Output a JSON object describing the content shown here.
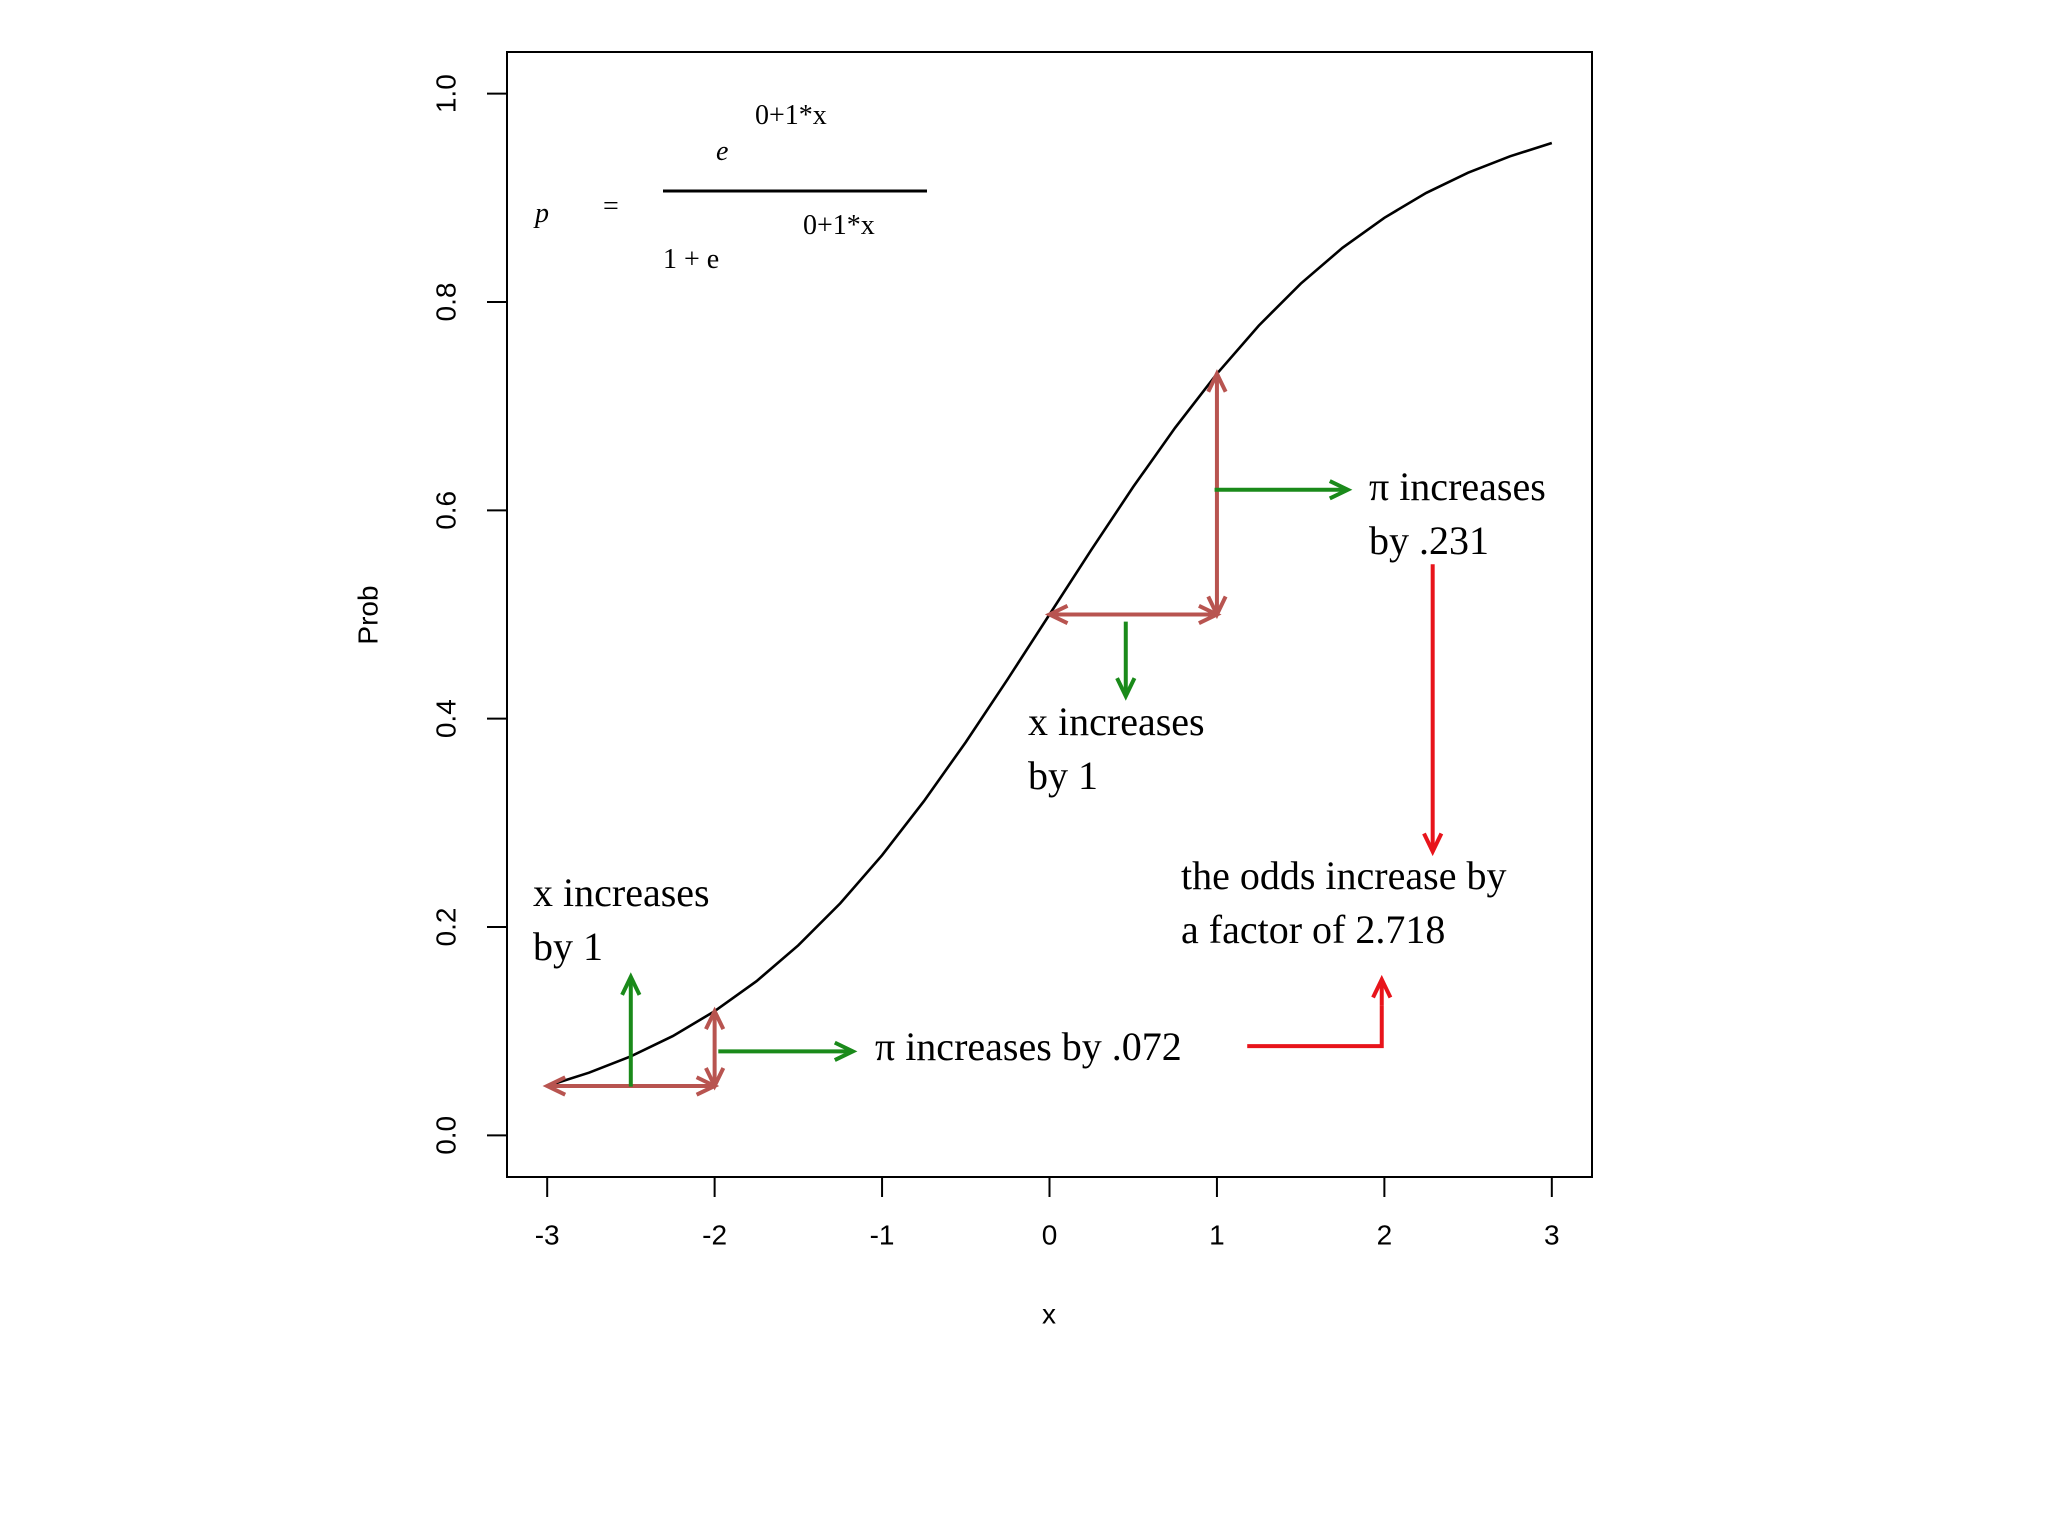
{
  "chart_data": {
    "type": "line",
    "x_label": "x",
    "y_label": "Prob",
    "x": [
      -3,
      -2.75,
      -2.5,
      -2.25,
      -2,
      -1.75,
      -1.5,
      -1.25,
      -1,
      -0.75,
      -0.5,
      -0.25,
      0,
      0.25,
      0.5,
      0.75,
      1,
      1.25,
      1.5,
      1.75,
      2,
      2.25,
      2.5,
      2.75,
      3
    ],
    "values": [
      0.0474,
      0.0601,
      0.0759,
      0.0953,
      0.1192,
      0.148,
      0.1824,
      0.2227,
      0.2689,
      0.3208,
      0.3775,
      0.4378,
      0.5,
      0.5622,
      0.6225,
      0.6792,
      0.7311,
      0.7773,
      0.8176,
      0.852,
      0.8808,
      0.9047,
      0.9241,
      0.9399,
      0.9526
    ],
    "color": "#000000",
    "xlim": [
      -3.24,
      3.24
    ],
    "ylim": [
      -0.04,
      1.04
    ],
    "xticks": [
      -3,
      -2,
      -1,
      0,
      1,
      2,
      3
    ],
    "yticks": [
      {
        "value": 0,
        "label": "0.0"
      },
      0.2,
      0.4,
      0.6,
      0.8,
      {
        "value": 1,
        "label": "1.0"
      }
    ],
    "grid": false,
    "formula": {
      "lhs": "p",
      "equals": "=",
      "numerator_base": "e",
      "numerator_exponent": "0+1*x",
      "denominator_base": "1 + e",
      "denominator_exponent": "0+1*x"
    },
    "annotations": [
      {
        "lines": [
          "x increases",
          "by 1"
        ],
        "color": "#000000"
      },
      {
        "lines": [
          "π increases by .072"
        ],
        "color": "#000000"
      },
      {
        "lines": [
          "x increases",
          "by 1"
        ],
        "color": "#000000"
      },
      {
        "lines": [
          "π increases",
          "by .231"
        ],
        "color": "#000000"
      },
      {
        "lines": [
          "the odds increase by",
          "a factor of 2.718"
        ],
        "color": "#e8141b"
      }
    ]
  }
}
